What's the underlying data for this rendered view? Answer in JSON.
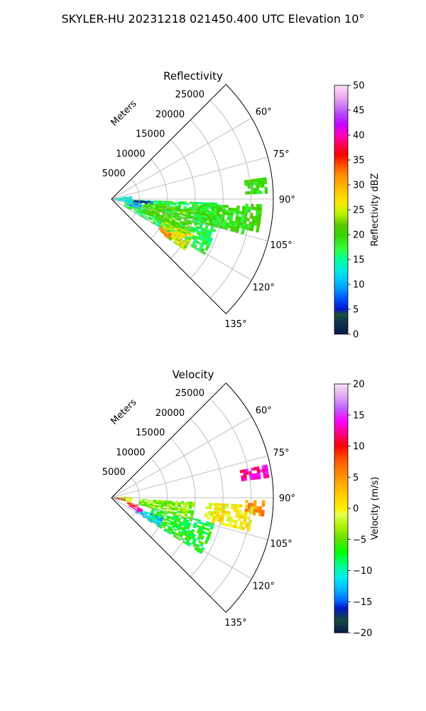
{
  "figure": {
    "suptitle": "SKYLER-HU  20231218  021450.400 UTC Elevation 10°"
  },
  "chart_data": [
    {
      "type": "polar-sector",
      "title": "Reflectivity",
      "range_label": "Meters",
      "range_ticks": [
        5000,
        10000,
        15000,
        20000,
        25000
      ],
      "range_tick_labels": [
        "5000",
        "10000",
        "15000",
        "20000",
        "25000"
      ],
      "rmax": 29000,
      "angle_ticks": [
        60,
        75,
        90,
        105,
        120,
        135
      ],
      "angle_tick_labels": [
        "60°",
        "75°",
        "90°",
        "105°",
        "120°",
        "135°"
      ],
      "angle_range": [
        45,
        135
      ],
      "grid": true,
      "colorbar": {
        "label": "Reflectivity dBZ",
        "min": 0,
        "max": 50,
        "ticks": [
          0,
          5,
          10,
          15,
          20,
          25,
          30,
          35,
          40,
          45,
          50
        ],
        "tick_labels": [
          "0",
          "5",
          "10",
          "15",
          "20",
          "25",
          "30",
          "35",
          "40",
          "45",
          "50"
        ],
        "stops": [
          {
            "v": 0,
            "c": "#0a1a4e"
          },
          {
            "v": 2,
            "c": "#0d2e4a"
          },
          {
            "v": 4,
            "c": "#1b4f3c"
          },
          {
            "v": 5,
            "c": "#0018c8"
          },
          {
            "v": 7,
            "c": "#0050ff"
          },
          {
            "v": 9,
            "c": "#0096ff"
          },
          {
            "v": 11,
            "c": "#00c8ff"
          },
          {
            "v": 13,
            "c": "#00eedc"
          },
          {
            "v": 15,
            "c": "#00ff9a"
          },
          {
            "v": 17,
            "c": "#30ff40"
          },
          {
            "v": 20,
            "c": "#38d400"
          },
          {
            "v": 22,
            "c": "#5ac800"
          },
          {
            "v": 24,
            "c": "#b4f000"
          },
          {
            "v": 26,
            "c": "#f0f000"
          },
          {
            "v": 28,
            "c": "#ffd200"
          },
          {
            "v": 30,
            "c": "#ffb000"
          },
          {
            "v": 32,
            "c": "#ff8c00"
          },
          {
            "v": 34,
            "c": "#ff5000"
          },
          {
            "v": 36,
            "c": "#ff0000"
          },
          {
            "v": 38,
            "c": "#ff0050"
          },
          {
            "v": 40,
            "c": "#ff00c0"
          },
          {
            "v": 42,
            "c": "#c800ff"
          },
          {
            "v": 44,
            "c": "#b040ff"
          },
          {
            "v": 46,
            "c": "#d080f0"
          },
          {
            "v": 48,
            "c": "#f0b4f0"
          },
          {
            "v": 50,
            "c": "#f8e0f8"
          }
        ]
      },
      "echo_regions": [
        {
          "a0": 92,
          "a1": 120,
          "r0": 2500,
          "r1": 19500,
          "v": 17
        },
        {
          "a0": 97,
          "a1": 113,
          "r0": 6000,
          "r1": 15000,
          "v": 21
        },
        {
          "a0": 113,
          "a1": 124,
          "r0": 10000,
          "r1": 16000,
          "v": 24
        },
        {
          "a0": 116,
          "a1": 123,
          "r0": 12000,
          "r1": 15000,
          "v": 27
        },
        {
          "a0": 120,
          "a1": 124,
          "r0": 10000,
          "r1": 12500,
          "v": 31
        },
        {
          "a0": 93,
          "a1": 104,
          "r0": 15000,
          "r1": 24500,
          "v": 19
        },
        {
          "a0": 92,
          "a1": 102,
          "r0": 24000,
          "r1": 27000,
          "v": 20
        },
        {
          "a0": 99,
          "a1": 109,
          "r0": 3000,
          "r1": 5500,
          "v": 10
        },
        {
          "a0": 93,
          "a1": 97,
          "r0": 4000,
          "r1": 7500,
          "v": 6
        },
        {
          "a0": 81,
          "a1": 100,
          "r0": 200,
          "r1": 3500,
          "v": 13
        },
        {
          "a0": 82,
          "a1": 88,
          "r0": 24000,
          "r1": 28000,
          "v": 20
        }
      ]
    },
    {
      "type": "polar-sector",
      "title": "Velocity",
      "range_label": "Meters",
      "range_ticks": [
        5000,
        10000,
        15000,
        20000,
        25000
      ],
      "range_tick_labels": [
        "5000",
        "10000",
        "15000",
        "20000",
        "25000"
      ],
      "rmax": 29000,
      "angle_ticks": [
        60,
        75,
        90,
        105,
        120,
        135
      ],
      "angle_tick_labels": [
        "60°",
        "75°",
        "90°",
        "105°",
        "120°",
        "135°"
      ],
      "angle_range": [
        45,
        135
      ],
      "grid": true,
      "colorbar": {
        "label": "Velocity (m/s)",
        "min": -20,
        "max": 20,
        "ticks": [
          -20,
          -15,
          -10,
          -5,
          0,
          5,
          10,
          15,
          20
        ],
        "tick_labels": [
          "−20",
          "−15",
          "−10",
          "−5",
          "0",
          "5",
          "10",
          "15",
          "20"
        ],
        "stops": [
          {
            "v": -20,
            "c": "#0a1a4e"
          },
          {
            "v": -18,
            "c": "#15473e"
          },
          {
            "v": -16,
            "c": "#0018c8"
          },
          {
            "v": -15,
            "c": "#0060ff"
          },
          {
            "v": -13,
            "c": "#00b4ff"
          },
          {
            "v": -11,
            "c": "#00f0f0"
          },
          {
            "v": -9,
            "c": "#00ff80"
          },
          {
            "v": -7,
            "c": "#00ff00"
          },
          {
            "v": -5,
            "c": "#60e000"
          },
          {
            "v": -3,
            "c": "#a8f000"
          },
          {
            "v": -1,
            "c": "#e6ff50"
          },
          {
            "v": 0,
            "c": "#fff000"
          },
          {
            "v": 2,
            "c": "#ffd000"
          },
          {
            "v": 4,
            "c": "#ffa800"
          },
          {
            "v": 6,
            "c": "#ff8000"
          },
          {
            "v": 8,
            "c": "#ff5000"
          },
          {
            "v": 10,
            "c": "#ff0000"
          },
          {
            "v": 12,
            "c": "#ff0080"
          },
          {
            "v": 14,
            "c": "#ff00ff"
          },
          {
            "v": 16,
            "c": "#c060ff"
          },
          {
            "v": 18,
            "c": "#e0a8f0"
          },
          {
            "v": 20,
            "c": "#f8e0f8"
          }
        ]
      },
      "echo_regions": [
        {
          "a0": 104,
          "a1": 122,
          "r0": 7500,
          "r1": 19000,
          "v": -7
        },
        {
          "a0": 93,
          "a1": 105,
          "r0": 5000,
          "r1": 15000,
          "v": -4
        },
        {
          "a0": 112,
          "a1": 121,
          "r0": 5000,
          "r1": 10000,
          "v": -12
        },
        {
          "a0": 93,
          "a1": 103,
          "r0": 17000,
          "r1": 25500,
          "v": 0
        },
        {
          "a0": 91,
          "a1": 96,
          "r0": 24000,
          "r1": 27500,
          "v": 5
        },
        {
          "a0": 110,
          "a1": 117,
          "r0": 3500,
          "r1": 6000,
          "v": 14
        },
        {
          "a0": 106,
          "a1": 112,
          "r0": 3000,
          "r1": 5000,
          "v": 9
        },
        {
          "a0": 86,
          "a1": 103,
          "r0": 200,
          "r1": 3500,
          "v": -2
        },
        {
          "a0": 95,
          "a1": 100,
          "r0": 500,
          "r1": 2500,
          "v": 12
        },
        {
          "a0": 78,
          "a1": 82,
          "r0": 23500,
          "r1": 28500,
          "v": 13
        }
      ]
    }
  ]
}
